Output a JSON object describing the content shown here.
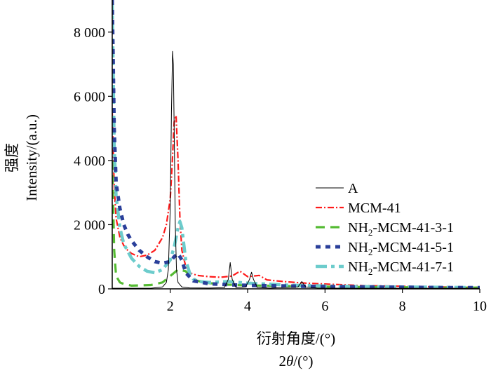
{
  "chart_data": {
    "type": "line",
    "title": "",
    "xlabel": "衍射角度/(°)",
    "xlabel_en": "2θ/(°)",
    "ylabel": "强度",
    "ylabel_en": "Intensity/(a.u.)",
    "xlim": [
      0.5,
      10
    ],
    "ylim": [
      0,
      9000
    ],
    "x_ticks": [
      2,
      4,
      6,
      8,
      10
    ],
    "x_tick_labels": [
      "2",
      "4",
      "6",
      "8",
      "10"
    ],
    "y_ticks": [
      0,
      2000,
      4000,
      6000,
      8000
    ],
    "y_tick_labels": [
      "0",
      "2 000",
      "4 000",
      "6 000",
      "8 000"
    ],
    "legend_position": "right",
    "series": [
      {
        "name": "A",
        "label_parts": [
          "A"
        ],
        "color": "#000000",
        "style": "solid",
        "x": [
          0.5,
          1.0,
          1.5,
          1.8,
          1.9,
          1.95,
          2.0,
          2.03,
          2.06,
          2.08,
          2.1,
          2.13,
          2.16,
          2.2,
          2.3,
          2.5,
          3.0,
          3.4,
          3.5,
          3.55,
          3.6,
          3.7,
          3.95,
          4.05,
          4.1,
          4.15,
          4.25,
          4.6,
          5.3,
          5.4,
          5.5,
          5.8,
          7.0,
          8.5,
          10.0
        ],
        "values": [
          20,
          20,
          20,
          60,
          200,
          600,
          2500,
          5500,
          7400,
          7000,
          5000,
          2000,
          600,
          200,
          60,
          30,
          25,
          40,
          300,
          820,
          300,
          40,
          60,
          300,
          520,
          300,
          40,
          25,
          60,
          230,
          60,
          25,
          20,
          20,
          20
        ]
      },
      {
        "name": "MCM-41",
        "label_parts": [
          "MCM-41"
        ],
        "color": "#ff1a1a",
        "style": "dashdot",
        "x": [
          0.5,
          0.55,
          0.6,
          0.7,
          0.8,
          0.9,
          1.0,
          1.2,
          1.4,
          1.6,
          1.8,
          1.9,
          2.0,
          2.05,
          2.1,
          2.15,
          2.2,
          2.25,
          2.3,
          2.4,
          2.5,
          2.7,
          3.0,
          3.3,
          3.6,
          3.8,
          4.0,
          4.3,
          4.5,
          5.0,
          5.5,
          6.0,
          7.0,
          8.0,
          9.0,
          10.0
        ],
        "values": [
          5500,
          3200,
          2200,
          1600,
          1350,
          1200,
          1100,
          1000,
          1050,
          1200,
          1600,
          2000,
          2800,
          3900,
          5200,
          5400,
          4000,
          2200,
          1200,
          700,
          500,
          420,
          380,
          360,
          400,
          550,
          380,
          420,
          280,
          220,
          180,
          150,
          100,
          80,
          60,
          50
        ]
      },
      {
        "name": "NH2-MCM-41-3-1",
        "label_parts": [
          "NH",
          "2",
          "-MCM-41-3-1"
        ],
        "color": "#55bb33",
        "style": "dashed",
        "x": [
          0.5,
          0.55,
          0.6,
          0.7,
          0.8,
          1.0,
          1.5,
          1.8,
          2.0,
          2.2,
          2.4,
          2.5,
          2.7,
          3.0,
          3.5,
          4.0,
          5.0,
          6.0,
          7.0,
          8.0,
          9.0,
          10.0
        ],
        "values": [
          4000,
          1200,
          400,
          200,
          150,
          100,
          120,
          200,
          400,
          600,
          550,
          400,
          250,
          180,
          130,
          110,
          90,
          70,
          60,
          50,
          40,
          40
        ]
      },
      {
        "name": "NH2-MCM-41-5-1",
        "label_parts": [
          "NH",
          "2",
          "-MCM-41-5-1"
        ],
        "color": "#2a3f9a",
        "style": "dotted",
        "x": [
          0.5,
          0.55,
          0.6,
          0.7,
          0.8,
          0.9,
          1.0,
          1.2,
          1.4,
          1.6,
          1.8,
          2.0,
          2.1,
          2.2,
          2.3,
          2.4,
          2.6,
          3.0,
          3.5,
          4.0,
          5.0,
          6.0,
          7.0,
          8.0,
          9.0,
          10.0
        ],
        "values": [
          9000,
          5000,
          3300,
          2500,
          2000,
          1700,
          1500,
          1200,
          1000,
          850,
          800,
          850,
          1000,
          1100,
          900,
          500,
          250,
          160,
          130,
          110,
          90,
          70,
          60,
          50,
          40,
          40
        ]
      },
      {
        "name": "NH2-MCM-41-7-1",
        "label_parts": [
          "NH",
          "2",
          "-MCM-41-7-1"
        ],
        "color": "#6ccccc",
        "style": "dashdot-heavy",
        "x": [
          0.5,
          0.55,
          0.6,
          0.7,
          0.8,
          1.0,
          1.2,
          1.4,
          1.6,
          1.8,
          2.0,
          2.1,
          2.2,
          2.25,
          2.3,
          2.35,
          2.4,
          2.5,
          2.6,
          2.8,
          3.0,
          3.5,
          4.0,
          4.5,
          5.0,
          6.0,
          7.0,
          8.0,
          9.0,
          10.0
        ],
        "values": [
          9000,
          4500,
          2900,
          1900,
          1400,
          950,
          700,
          550,
          500,
          600,
          900,
          1300,
          1900,
          2100,
          1900,
          1400,
          900,
          500,
          300,
          220,
          200,
          230,
          180,
          150,
          120,
          90,
          70,
          60,
          50,
          40
        ]
      }
    ]
  }
}
